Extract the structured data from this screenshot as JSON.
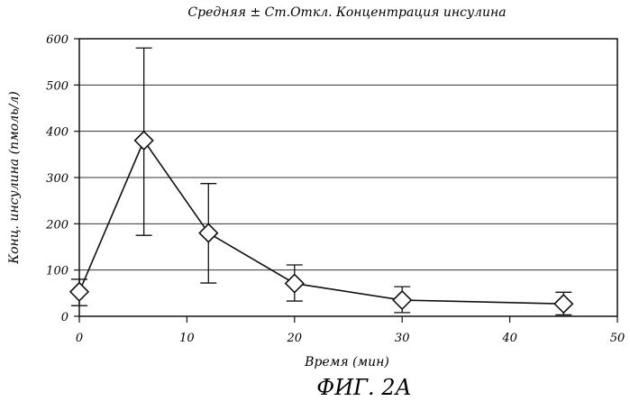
{
  "chart_data": {
    "type": "line",
    "title": "Средняя ± Ст.Откл. Концентрация инсулина",
    "xlabel": "Время (мин)",
    "ylabel": "Конц. инсулина (пмоль/л)",
    "figure_caption": "ФИГ. 2А",
    "xlim": [
      0,
      50
    ],
    "ylim": [
      0,
      600
    ],
    "x_ticks": [
      0,
      10,
      20,
      30,
      40,
      50
    ],
    "y_ticks": [
      0,
      100,
      200,
      300,
      400,
      500,
      600
    ],
    "grid": "horizontal",
    "marker": "diamond",
    "series": [
      {
        "x": [
          0,
          6,
          12,
          20,
          30,
          45
        ],
        "y": [
          53,
          380,
          180,
          71,
          35,
          27
        ],
        "err_low": [
          23,
          175,
          72,
          33,
          8,
          3
        ],
        "err_high": [
          80,
          580,
          287,
          111,
          64,
          52
        ]
      }
    ],
    "colors": {
      "line": "#111111",
      "grid": "#333333",
      "marker_fill": "#ffffff"
    }
  }
}
